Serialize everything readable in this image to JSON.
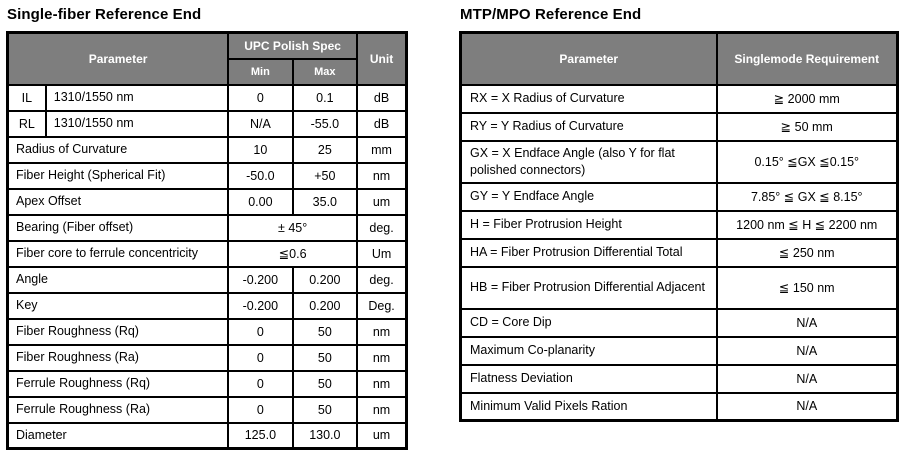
{
  "colors": {
    "header_bg": "#7e7e7e",
    "header_text": "#ffffff",
    "border": "#000000",
    "body_text": "#000000",
    "page_bg": "#ffffff"
  },
  "left_table": {
    "title": "Single-fiber Reference End",
    "header": {
      "parameter": "Parameter",
      "spec_group": "UPC Polish Spec",
      "min": "Min",
      "max": "Max",
      "unit": "Unit"
    },
    "rows": [
      {
        "code": "IL",
        "param": "1310/1550 nm",
        "min": "0",
        "max": "0.1",
        "unit": "dB"
      },
      {
        "code": "RL",
        "param": "1310/1550 nm",
        "min": "N/A",
        "max": "-55.0",
        "unit": "dB"
      },
      {
        "param": "Radius of Curvature",
        "min": "10",
        "max": "25",
        "unit": "mm"
      },
      {
        "param": "Fiber Height (Spherical Fit)",
        "min": "-50.0",
        "max": "+50",
        "unit": "nm"
      },
      {
        "param": "Apex Offset",
        "min": "0.00",
        "max": "35.0",
        "unit": "um"
      },
      {
        "param": "Bearing (Fiber offset)",
        "span": "± 45°",
        "unit": "deg."
      },
      {
        "param": "Fiber core to ferrule concentricity",
        "span": "≦0.6",
        "unit": "Um"
      },
      {
        "param": "Angle",
        "min": "-0.200",
        "max": "0.200",
        "unit": "deg."
      },
      {
        "param": "Key",
        "min": "-0.200",
        "max": "0.200",
        "unit": "Deg."
      },
      {
        "param": "Fiber Roughness (Rq)",
        "min": "0",
        "max": "50",
        "unit": "nm"
      },
      {
        "param": "Fiber Roughness (Ra)",
        "min": "0",
        "max": "50",
        "unit": "nm"
      },
      {
        "param": "Ferrule Roughness (Rq)",
        "min": "0",
        "max": "50",
        "unit": "nm"
      },
      {
        "param": "Ferrule Roughness (Ra)",
        "min": "0",
        "max": "50",
        "unit": "nm"
      },
      {
        "param": "Diameter",
        "min": "125.0",
        "max": "130.0",
        "unit": "um"
      }
    ]
  },
  "right_table": {
    "title": "MTP/MPO Reference End",
    "header": {
      "parameter": "Parameter",
      "requirement": "Singlemode Requirement"
    },
    "rows": [
      {
        "param": "RX = X Radius of Curvature",
        "req": "≧ 2000 mm"
      },
      {
        "param": "RY = Y Radius of Curvature",
        "req": "≧ 50 mm"
      },
      {
        "param": "GX = X Endface Angle (also Y for flat polished connectors)",
        "req": "0.15° ≦GX ≦0.15°",
        "tall": true
      },
      {
        "param": "GY = Y Endface Angle",
        "req": "7.85° ≦ GX ≦ 8.15°"
      },
      {
        "param": "H = Fiber Protrusion Height",
        "req": "1200 nm  ≦ H ≦ 2200 nm"
      },
      {
        "param": "HA = Fiber Protrusion Differential Total",
        "req": "≦ 250 nm"
      },
      {
        "param": "HB = Fiber Protrusion Differential Adjacent",
        "req": "≦ 150 nm",
        "tall": true
      },
      {
        "param": "CD = Core Dip",
        "req": "N/A"
      },
      {
        "param": "Maximum Co-planarity",
        "req": "N/A"
      },
      {
        "param": "Flatness Deviation",
        "req": "N/A"
      },
      {
        "param": "Minimum Valid Pixels Ration",
        "req": "N/A"
      }
    ]
  }
}
